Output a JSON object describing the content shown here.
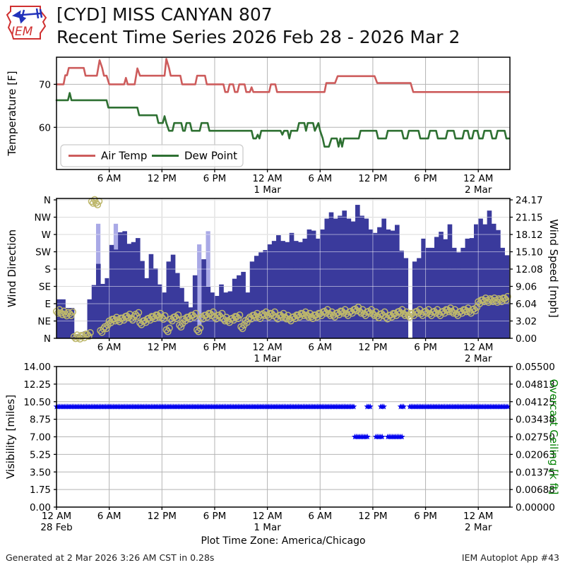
{
  "header": {
    "logo_text": "IEM",
    "title_line1": "[CYD] MISS CANYAN 807",
    "title_line2": "Recent Time Series 2026 Feb 28 - 2026 Mar 2"
  },
  "footer": {
    "generated": "Generated at 2 Mar 2026 3:26 AM CST in 0.28s",
    "app": "IEM Autoplot App #43"
  },
  "colors": {
    "air_temp": "#cd5c5c",
    "dew_point": "#2e7032",
    "wind_bar": "#3a3a9c",
    "wind_gust": "#a9a9e6",
    "wind_dir": "#bdb76b",
    "visibility": "#0000ee",
    "ceiling_label": "#008000",
    "grid": "#b4b4b4",
    "logo_red": "#d03030",
    "logo_blue": "#2233bb"
  },
  "time_axis": {
    "hours": [
      0,
      6,
      12,
      18,
      24,
      30,
      36,
      42,
      48
    ],
    "labels": [
      "12 AM",
      "6 AM",
      "12 PM",
      "6 PM",
      "12 AM",
      "6 AM",
      "12 PM",
      "6 PM",
      "12 AM"
    ],
    "subs": {
      "0": "28 Feb",
      "24": "1 Mar",
      "48": "2 Mar"
    },
    "xmax_hours": 51.6,
    "note": "Plot Time Zone: America/Chicago"
  },
  "chart_data": [
    {
      "type": "line",
      "panel": "temperature",
      "ylabel": "Temperature [F]",
      "ylim": [
        50.2,
        76.3
      ],
      "yticks": [
        60,
        70
      ],
      "legend": [
        "Air Temp",
        "Dew Point"
      ],
      "series": [
        {
          "name": "Air Temp",
          "color": "#cd5c5c",
          "points": [
            [
              0,
              70
            ],
            [
              0.8,
              70
            ],
            [
              1,
              72.1
            ],
            [
              1.2,
              72.1
            ],
            [
              1.4,
              73.8
            ],
            [
              3.1,
              73.8
            ],
            [
              3.3,
              72
            ],
            [
              4.6,
              72
            ],
            [
              4.9,
              75.6
            ],
            [
              5.2,
              73.8
            ],
            [
              5.4,
              72
            ],
            [
              5.7,
              72
            ],
            [
              6,
              70
            ],
            [
              7.7,
              70
            ],
            [
              7.9,
              71.5
            ],
            [
              8.1,
              70
            ],
            [
              8.9,
              70
            ],
            [
              9.2,
              73.7
            ],
            [
              9.5,
              72
            ],
            [
              12.3,
              72
            ],
            [
              12.5,
              75.9
            ],
            [
              12.8,
              73.8
            ],
            [
              13,
              72
            ],
            [
              14.1,
              72
            ],
            [
              14.3,
              70
            ],
            [
              15.8,
              70
            ],
            [
              16,
              72
            ],
            [
              16.9,
              72
            ],
            [
              17.1,
              70
            ],
            [
              19,
              70
            ],
            [
              19.2,
              68.2
            ],
            [
              19.5,
              68.2
            ],
            [
              19.7,
              70
            ],
            [
              20.1,
              70
            ],
            [
              20.3,
              68.2
            ],
            [
              20.6,
              68.2
            ],
            [
              20.8,
              70
            ],
            [
              21.4,
              70
            ],
            [
              21.6,
              68.2
            ],
            [
              22,
              68.2
            ],
            [
              22.2,
              69.3
            ],
            [
              22.4,
              68.2
            ],
            [
              24.2,
              68.2
            ],
            [
              24.4,
              70
            ],
            [
              24.9,
              70
            ],
            [
              25.1,
              68.2
            ],
            [
              30.5,
              68.2
            ],
            [
              30.7,
              70.3
            ],
            [
              31.7,
              70.3
            ],
            [
              32,
              71.9
            ],
            [
              36.2,
              71.9
            ],
            [
              36.5,
              70.3
            ],
            [
              40.3,
              70.3
            ],
            [
              40.6,
              68.2
            ],
            [
              51.5,
              68.2
            ]
          ]
        },
        {
          "name": "Dew Point",
          "color": "#2e7032",
          "points": [
            [
              0,
              66.3
            ],
            [
              1.3,
              66.3
            ],
            [
              1.5,
              68
            ],
            [
              1.7,
              66.3
            ],
            [
              5.7,
              66.3
            ],
            [
              5.9,
              64.6
            ],
            [
              9.2,
              64.6
            ],
            [
              9.4,
              62.8
            ],
            [
              11.4,
              62.8
            ],
            [
              11.6,
              61
            ],
            [
              12.1,
              61
            ],
            [
              12.3,
              62.6
            ],
            [
              12.5,
              61
            ],
            [
              12.8,
              59.2
            ],
            [
              13.2,
              59.2
            ],
            [
              13.4,
              61
            ],
            [
              14.2,
              61
            ],
            [
              14.4,
              59.2
            ],
            [
              14.6,
              59.2
            ],
            [
              14.8,
              61
            ],
            [
              15.2,
              61
            ],
            [
              15.4,
              59.2
            ],
            [
              16.3,
              59.2
            ],
            [
              16.5,
              61
            ],
            [
              17.2,
              61
            ],
            [
              17.4,
              59.2
            ],
            [
              22.2,
              59.2
            ],
            [
              22.4,
              57.4
            ],
            [
              22.7,
              57.4
            ],
            [
              22.9,
              58.3
            ],
            [
              23.1,
              57.4
            ],
            [
              23.3,
              59.2
            ],
            [
              25.5,
              59.2
            ],
            [
              25.7,
              58.3
            ],
            [
              25.9,
              59.2
            ],
            [
              26.3,
              59.2
            ],
            [
              26.5,
              57.4
            ],
            [
              26.7,
              59.2
            ],
            [
              27.4,
              59.2
            ],
            [
              27.6,
              61
            ],
            [
              28.2,
              61
            ],
            [
              28.4,
              59.2
            ],
            [
              28.6,
              61
            ],
            [
              29.2,
              61
            ],
            [
              29.4,
              59.2
            ],
            [
              29.8,
              61
            ],
            [
              30,
              59.2
            ],
            [
              30.3,
              57.4
            ],
            [
              30.5,
              55.5
            ],
            [
              31,
              55.5
            ],
            [
              31.3,
              57.4
            ],
            [
              31.9,
              57.4
            ],
            [
              32.1,
              55.5
            ],
            [
              32.3,
              57.4
            ],
            [
              32.5,
              55.5
            ],
            [
              32.7,
              57.4
            ],
            [
              34.4,
              57.4
            ],
            [
              34.6,
              59.2
            ],
            [
              36.4,
              59.2
            ],
            [
              36.6,
              57.4
            ],
            [
              37.5,
              57.4
            ],
            [
              37.7,
              59.2
            ],
            [
              39.3,
              59.2
            ],
            [
              39.5,
              57.4
            ],
            [
              39.9,
              57.4
            ],
            [
              40.1,
              59.2
            ],
            [
              41.2,
              59.2
            ],
            [
              41.4,
              57.4
            ],
            [
              42.3,
              57.4
            ],
            [
              42.5,
              59.2
            ],
            [
              43.2,
              59.2
            ],
            [
              43.4,
              57.4
            ],
            [
              44.3,
              57.4
            ],
            [
              44.5,
              59.2
            ],
            [
              45.2,
              59.2
            ],
            [
              45.4,
              57.4
            ],
            [
              46.2,
              57.4
            ],
            [
              46.4,
              59.2
            ],
            [
              46.8,
              59.2
            ],
            [
              47,
              57.4
            ],
            [
              47.3,
              57.4
            ],
            [
              47.5,
              59.2
            ],
            [
              47.9,
              59.2
            ],
            [
              48.1,
              57.4
            ],
            [
              48.5,
              57.4
            ],
            [
              48.7,
              59.2
            ],
            [
              49.4,
              59.2
            ],
            [
              49.6,
              57.4
            ],
            [
              50,
              57.4
            ],
            [
              50.2,
              59.2
            ],
            [
              51,
              59.2
            ],
            [
              51.2,
              57.4
            ],
            [
              51.5,
              57.4
            ]
          ]
        }
      ]
    },
    {
      "type": "bar+scatter",
      "panel": "wind",
      "ylabel_left": "Wind Direction",
      "ylabel_right": "Wind Speed [mph]",
      "yticks_left": [
        "N",
        "NW",
        "W",
        "SW",
        "S",
        "SE",
        "E",
        "NE",
        "N"
      ],
      "yticks_right": [
        "24.17",
        "21.15",
        "18.12",
        "15.10",
        "12.08",
        "9.06",
        "6.04",
        "3.02",
        "0.00"
      ],
      "speed_ylim": [
        0,
        24.17
      ],
      "speed_mph": {
        "h0": 0,
        "dh": 0.5,
        "values": [
          6.8,
          6.8,
          5.3,
          5.3,
          0.6,
          0.6,
          1.2,
          6.8,
          9.3,
          13,
          9.5,
          10.5,
          16.3,
          15.5,
          18.5,
          18.7,
          16.5,
          16.8,
          17.5,
          13.5,
          10.5,
          14.7,
          12.2,
          9.4,
          8,
          13.4,
          14.6,
          11.4,
          8.8,
          6.4,
          5.4,
          11,
          2.2,
          13.8,
          9,
          8,
          7.4,
          9.4,
          8,
          8.2,
          10.4,
          11,
          11.6,
          8,
          13.4,
          14.4,
          15,
          15.4,
          16.4,
          17,
          18,
          17,
          16.8,
          18.4,
          17,
          16.8,
          17.4,
          19,
          18.8,
          17.4,
          19,
          20.9,
          22,
          20.9,
          21.4,
          22.3,
          20.9,
          20.4,
          23.3,
          21.4,
          20.9,
          19,
          18.4,
          19.4,
          20.9,
          19,
          18.8,
          19.8,
          15.3,
          14,
          null,
          13.4,
          14,
          17.4,
          15.8,
          15.8,
          17.7,
          18.6,
          17.3,
          19.9,
          15.8,
          15,
          15.8,
          17.4,
          17.5,
          19.9,
          20.9,
          19.9,
          22.3,
          20,
          18.9,
          15.8,
          14.5
        ]
      },
      "gusts_mph": [
        [
          4.5,
          20
        ],
        [
          6.5,
          20
        ],
        [
          16,
          16.4
        ],
        [
          17,
          18.7
        ]
      ],
      "direction_deg": {
        "h0": 0,
        "dh": 0.5,
        "values": [
          70,
          66,
          63,
          64,
          4,
          3,
          6,
          10,
          356,
          352,
          20,
          30,
          45,
          50,
          48,
          52,
          58,
          52,
          62,
          40,
          46,
          52,
          56,
          60,
          54,
          22,
          50,
          56,
          34,
          50,
          55,
          60,
          22,
          55,
          60,
          64,
          55,
          60,
          50,
          46,
          52,
          56,
          30,
          46,
          55,
          60,
          56,
          64,
          60,
          64,
          55,
          60,
          55,
          50,
          56,
          60,
          64,
          60,
          56,
          60,
          64,
          70,
          64,
          60,
          66,
          70,
          64,
          70,
          76,
          70,
          64,
          70,
          64,
          58,
          64,
          55,
          60,
          64,
          70,
          64,
          60,
          64,
          70,
          64,
          70,
          64,
          70,
          64,
          70,
          74,
          70,
          64,
          70,
          74,
          70,
          76,
          95,
          100,
          98,
          100,
          98,
          100,
          104
        ]
      }
    },
    {
      "type": "scatter",
      "panel": "visibility",
      "ylabel_left": "Visibility [miles]",
      "ylabel_right": "Overcast Ceiling [k ft]",
      "yticks_left": [
        "14.00",
        "12.25",
        "10.50",
        "8.75",
        "7.00",
        "5.25",
        "3.50",
        "1.75",
        "0.00"
      ],
      "yticks_right": [
        "0.05500",
        "0.04813",
        "0.04125",
        "0.03438",
        "0.02750",
        "0.02063",
        "0.01375",
        "0.00688",
        "0.00000"
      ],
      "ylim_left": [
        0,
        14
      ],
      "marker": "star",
      "segments": [
        {
          "h0": 0,
          "h1": 33.85,
          "miles": 10
        },
        {
          "h0": 33.95,
          "h1": 35.45,
          "miles": 7
        },
        {
          "h0": 35.35,
          "h1": 35.8,
          "miles": 10
        },
        {
          "h0": 36.35,
          "h1": 37.15,
          "miles": 7
        },
        {
          "h0": 36.9,
          "h1": 37.35,
          "miles": 10
        },
        {
          "h0": 37.7,
          "h1": 39.35,
          "miles": 7
        },
        {
          "h0": 39.15,
          "h1": 39.6,
          "miles": 10
        },
        {
          "h0": 40.2,
          "h1": 51.45,
          "miles": 10
        }
      ]
    }
  ]
}
